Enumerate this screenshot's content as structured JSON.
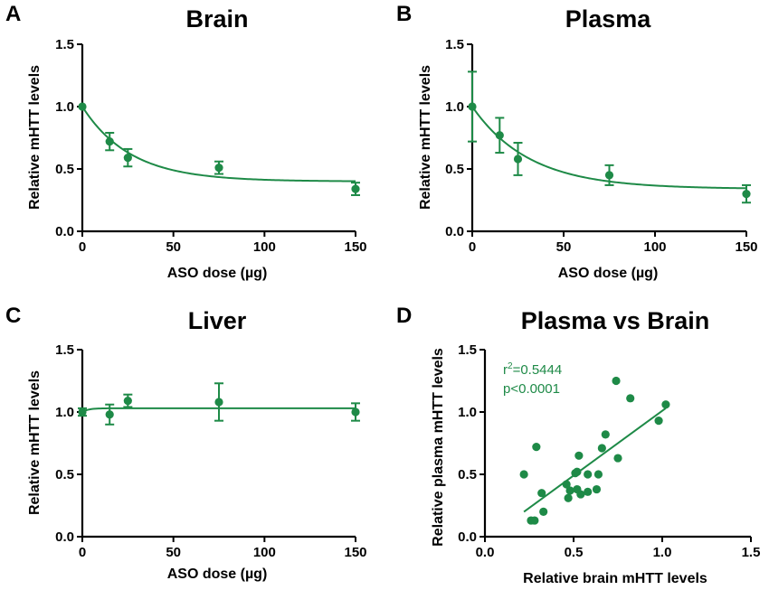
{
  "colors": {
    "series": "#1e8a47",
    "axis": "#000000",
    "background": "#ffffff"
  },
  "panels": {
    "A": {
      "letter": "A"
    },
    "B": {
      "letter": "B"
    },
    "C": {
      "letter": "C"
    },
    "D": {
      "letter": "D",
      "stat_r2_base": "r",
      "stat_r2_exp": "2",
      "stat_r2_value": "=0.5444",
      "stat_p": "p<0.0001"
    }
  },
  "chart_data": [
    {
      "id": "A",
      "type": "scatter",
      "title": "Brain",
      "xlabel": "ASO dose (µg)",
      "ylabel": "Relative mHTT levels",
      "xlim": [
        0,
        150
      ],
      "ylim": [
        0,
        1.5
      ],
      "xticks": [
        0,
        50,
        100,
        150
      ],
      "yticks": [
        0.0,
        0.5,
        1.0,
        1.5
      ],
      "ytick_labels": [
        "0.0",
        "0.5",
        "1.0",
        "1.5"
      ],
      "x": [
        0,
        15,
        25,
        75,
        150
      ],
      "y": [
        1.0,
        0.72,
        0.59,
        0.51,
        0.34
      ],
      "error": [
        0.0,
        0.07,
        0.07,
        0.05,
        0.05
      ],
      "fit": {
        "model": "one-phase decay",
        "y0": 1.0,
        "plateau": 0.4,
        "k": 0.038
      }
    },
    {
      "id": "B",
      "type": "scatter",
      "title": "Plasma",
      "xlabel": "ASO dose (µg)",
      "ylabel": "Relative mHTT levels",
      "xlim": [
        0,
        150
      ],
      "ylim": [
        0,
        1.5
      ],
      "xticks": [
        0,
        50,
        100,
        150
      ],
      "yticks": [
        0.0,
        0.5,
        1.0,
        1.5
      ],
      "ytick_labels": [
        "0.0",
        "0.5",
        "1.0",
        "1.5"
      ],
      "x": [
        0,
        15,
        25,
        75,
        150
      ],
      "y": [
        1.0,
        0.77,
        0.58,
        0.45,
        0.3
      ],
      "error": [
        0.28,
        0.14,
        0.13,
        0.08,
        0.07
      ],
      "fit": {
        "model": "one-phase decay",
        "y0": 1.0,
        "plateau": 0.34,
        "k": 0.032
      }
    },
    {
      "id": "C",
      "type": "scatter",
      "title": "Liver",
      "xlabel": "ASO dose (µg)",
      "ylabel": "Relative mHTT levels",
      "xlim": [
        0,
        150
      ],
      "ylim": [
        0,
        1.5
      ],
      "xticks": [
        0,
        50,
        100,
        150
      ],
      "yticks": [
        0.0,
        0.5,
        1.0,
        1.5
      ],
      "ytick_labels": [
        "0.0",
        "0.5",
        "1.0",
        "1.5"
      ],
      "x": [
        0,
        15,
        25,
        75,
        150
      ],
      "y": [
        1.0,
        0.98,
        1.09,
        1.08,
        1.0
      ],
      "error": [
        0.03,
        0.08,
        0.05,
        0.15,
        0.07
      ],
      "fit": {
        "model": "one-phase decay",
        "y0": 1.0,
        "plateau": 1.03,
        "k": 0.3
      }
    },
    {
      "id": "D",
      "type": "scatter",
      "title": "Plasma vs Brain",
      "xlabel": "Relative brain mHTT levels",
      "ylabel": "Relative plasma mHTT levels",
      "xlim": [
        0,
        1.5
      ],
      "ylim": [
        0,
        1.5
      ],
      "xticks": [
        0.0,
        0.5,
        1.0,
        1.5
      ],
      "yticks": [
        0.0,
        0.5,
        1.0,
        1.5
      ],
      "xtick_labels": [
        "0.0",
        "0.5",
        "1.0",
        "1.5"
      ],
      "ytick_labels": [
        "0.0",
        "0.5",
        "1.0",
        "1.5"
      ],
      "points": [
        [
          0.22,
          0.5
        ],
        [
          0.26,
          0.13
        ],
        [
          0.28,
          0.13
        ],
        [
          0.29,
          0.72
        ],
        [
          0.32,
          0.35
        ],
        [
          0.33,
          0.2
        ],
        [
          0.46,
          0.42
        ],
        [
          0.47,
          0.31
        ],
        [
          0.48,
          0.37
        ],
        [
          0.51,
          0.51
        ],
        [
          0.52,
          0.52
        ],
        [
          0.52,
          0.38
        ],
        [
          0.53,
          0.65
        ],
        [
          0.54,
          0.34
        ],
        [
          0.58,
          0.5
        ],
        [
          0.58,
          0.36
        ],
        [
          0.63,
          0.38
        ],
        [
          0.64,
          0.5
        ],
        [
          0.66,
          0.71
        ],
        [
          0.68,
          0.82
        ],
        [
          0.74,
          1.25
        ],
        [
          0.75,
          0.63
        ],
        [
          0.82,
          1.11
        ],
        [
          0.98,
          0.93
        ],
        [
          1.02,
          1.06
        ]
      ],
      "regression": {
        "x": [
          0.22,
          1.02
        ],
        "y": [
          0.2,
          1.03
        ]
      }
    }
  ]
}
